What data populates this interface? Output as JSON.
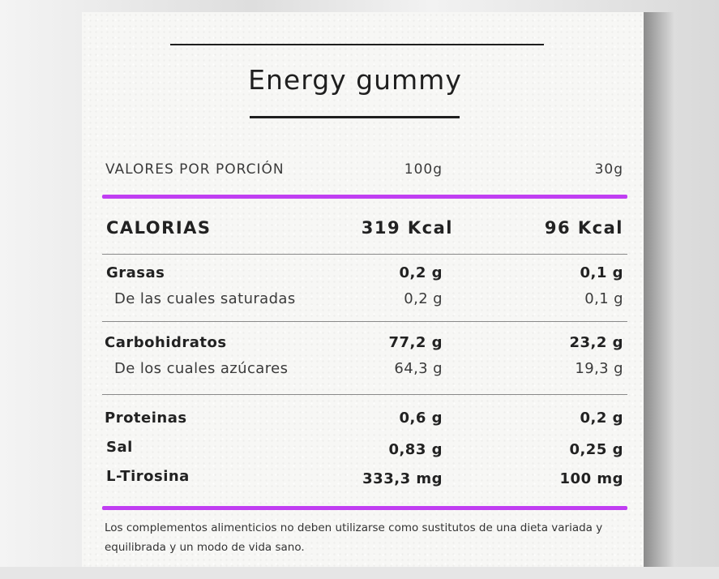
{
  "product": {
    "title": "Energy gummy"
  },
  "header": {
    "label": "VALORES POR PORCIÓN",
    "col1": "100g",
    "col2": "30g"
  },
  "colors": {
    "accent": "#c03ef2",
    "text": "#2b2b2b"
  },
  "rows": {
    "calorias": {
      "label": "CALORIAS",
      "v1": "319 Kcal",
      "v2": "96 Kcal"
    },
    "grasas": {
      "label": "Grasas",
      "v1": "0,2 g",
      "v2": "0,1 g"
    },
    "saturadas": {
      "label": "De las cuales saturadas",
      "v1": "0,2 g",
      "v2": "0,1 g"
    },
    "carbohidratos": {
      "label": "Carbohidratos",
      "v1": "77,2 g",
      "v2": "23,2 g"
    },
    "azucares": {
      "label": "De los cuales azúcares",
      "v1": "64,3 g",
      "v2": "19,3 g"
    },
    "proteinas": {
      "label": "Proteinas",
      "v1": "0,6 g",
      "v2": "0,2 g"
    },
    "sal": {
      "label": "Sal",
      "v1": "0,83 g",
      "v2": "0,25 g"
    },
    "tirosina": {
      "label": "L-Tirosina",
      "v1": "333,3 mg",
      "v2": "100 mg"
    }
  },
  "footnote": "Los complementos alimenticios no deben utilizarse como sustitutos de una dieta variada y equilibrada y un modo de vida sano."
}
